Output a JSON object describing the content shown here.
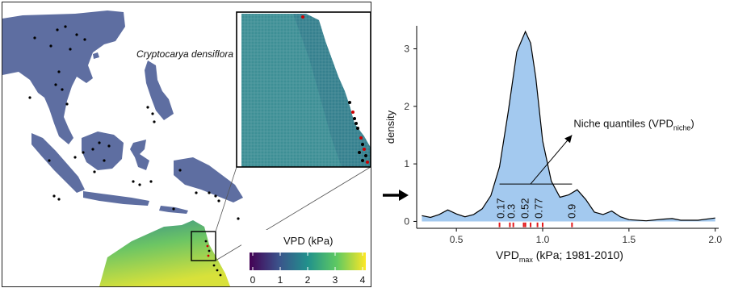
{
  "map": {
    "species_label": "Cryptocarya densiflora",
    "legend": {
      "title": "VPD (kPa)",
      "ticks": [
        "0",
        "1",
        "2",
        "3",
        "4"
      ],
      "colors": [
        "#440154",
        "#3b528b",
        "#21918c",
        "#5ec962",
        "#fde725"
      ]
    },
    "land_color": "#5e6ea1",
    "inset_color": "#3d8f95",
    "occurrence_color": "#000000",
    "selected_occurrence_color": "#cc0000"
  },
  "chart_data": {
    "type": "area",
    "xlabel_main": "VPD",
    "xlabel_sub": "max",
    "xlabel_rest": " (kPa; 1981-2010)",
    "ylabel": "density",
    "xlim": [
      0.27,
      2.02
    ],
    "ylim": [
      -0.12,
      3.4
    ],
    "x_ticks": [
      0.5,
      1.0,
      1.5,
      2.0
    ],
    "x_tick_labels": [
      "0.5",
      "1.0",
      "1.5",
      "2.0"
    ],
    "y_ticks": [
      0,
      1,
      2,
      3
    ],
    "y_tick_labels": [
      "0",
      "1",
      "2",
      "3"
    ],
    "fill_color": "#a3c9ef",
    "curve": {
      "x": [
        0.3,
        0.35,
        0.4,
        0.45,
        0.5,
        0.55,
        0.6,
        0.65,
        0.7,
        0.75,
        0.8,
        0.85,
        0.9,
        0.93,
        0.96,
        1.0,
        1.05,
        1.1,
        1.15,
        1.2,
        1.25,
        1.3,
        1.35,
        1.4,
        1.45,
        1.5,
        1.6,
        1.7,
        1.75,
        1.8,
        1.9,
        2.0
      ],
      "y": [
        0.1,
        0.07,
        0.12,
        0.2,
        0.13,
        0.08,
        0.12,
        0.22,
        0.45,
        0.95,
        1.9,
        2.95,
        3.3,
        3.1,
        2.5,
        1.4,
        0.7,
        0.42,
        0.46,
        0.55,
        0.38,
        0.16,
        0.12,
        0.18,
        0.08,
        0.03,
        0.01,
        0.04,
        0.05,
        0.02,
        0.02,
        0.06
      ]
    },
    "rug": [
      0.75,
      0.81,
      0.83,
      0.89,
      0.9,
      0.93,
      0.97,
      1.0,
      1.17
    ],
    "rug_color": "#e31a1c",
    "quantiles": [
      {
        "x": 0.76,
        "label": "0.17"
      },
      {
        "x": 0.82,
        "label": "0.3"
      },
      {
        "x": 0.9,
        "label": "0.52"
      },
      {
        "x": 0.98,
        "label": "0.77"
      },
      {
        "x": 1.17,
        "label": "0.9"
      }
    ],
    "quantile_line": {
      "x": [
        0.75,
        1.17
      ],
      "y": 0.65
    },
    "annotation": {
      "main": "Niche quantiles  (VPD",
      "sub": "niche",
      "close": ")",
      "arrow_from": [
        0.93,
        0.65
      ],
      "arrow_to": [
        1.17,
        1.5
      ]
    }
  }
}
